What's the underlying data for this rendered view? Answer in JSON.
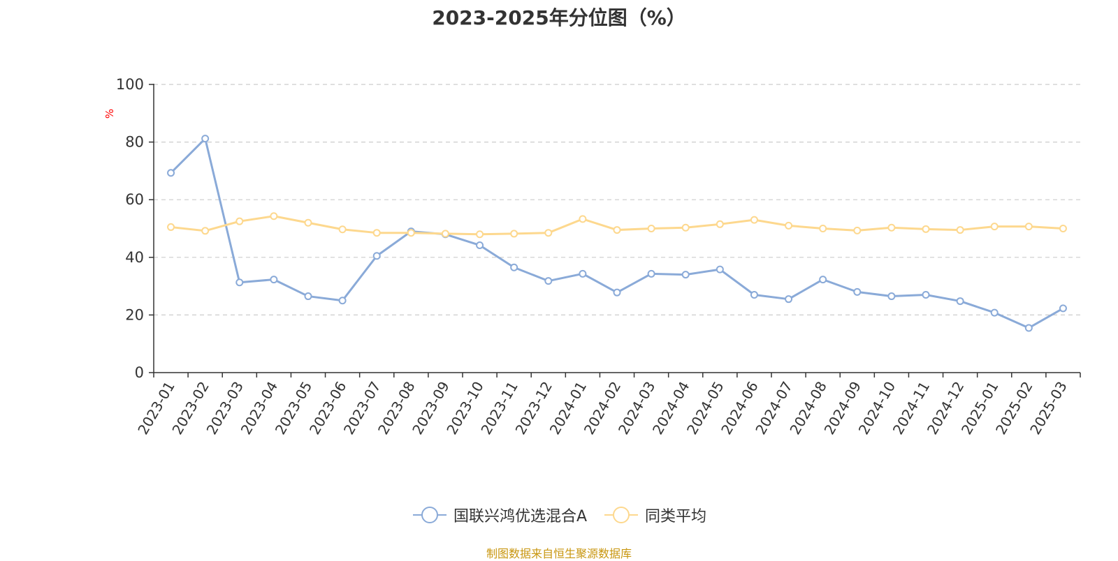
{
  "title": "2023-2025年分位图（%）",
  "source_note": "制图数据来自恒生聚源数据库",
  "colors": {
    "series_1": "#8aaad8",
    "series_2": "#fdd88e",
    "unit_label": "#ff0000",
    "source_note": "#c8960f"
  },
  "chart_data": {
    "type": "line",
    "title": "2023-2025年分位图（%）",
    "ylabel": "%",
    "ylim": [
      0,
      100
    ],
    "y_ticks": [
      0,
      20,
      40,
      60,
      80,
      100
    ],
    "grid": true,
    "legend_position": "bottom",
    "categories": [
      "2023-01",
      "2023-02",
      "2023-03",
      "2023-04",
      "2023-05",
      "2023-06",
      "2023-07",
      "2023-08",
      "2023-09",
      "2023-10",
      "2023-11",
      "2023-12",
      "2024-01",
      "2024-02",
      "2024-03",
      "2024-04",
      "2024-05",
      "2024-06",
      "2024-07",
      "2024-08",
      "2024-09",
      "2024-10",
      "2024-11",
      "2024-12",
      "2025-01",
      "2025-02",
      "2025-03"
    ],
    "series": [
      {
        "name": "国联兴鸿优选混合A",
        "color": "#8aaad8",
        "values": [
          69.3,
          81.2,
          31.3,
          32.3,
          26.5,
          25.0,
          40.5,
          49.0,
          48.0,
          44.2,
          36.5,
          31.8,
          34.3,
          27.8,
          34.3,
          34.0,
          35.8,
          27.0,
          25.5,
          32.3,
          28.0,
          26.5,
          27.0,
          24.8,
          20.8,
          15.5,
          22.3
        ]
      },
      {
        "name": "同类平均",
        "color": "#fdd88e",
        "values": [
          50.5,
          49.2,
          52.5,
          54.3,
          52.0,
          49.7,
          48.5,
          48.5,
          48.2,
          48.0,
          48.2,
          48.5,
          53.3,
          49.5,
          50.0,
          50.3,
          51.5,
          53.0,
          51.0,
          50.0,
          49.3,
          50.3,
          49.8,
          49.5,
          50.7,
          50.7,
          50.0
        ]
      }
    ]
  }
}
